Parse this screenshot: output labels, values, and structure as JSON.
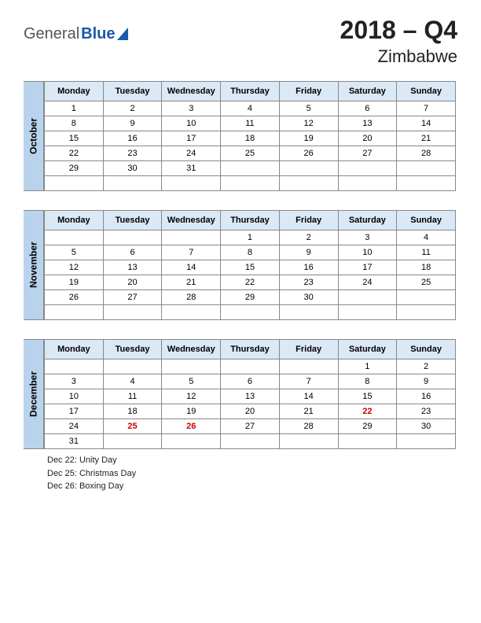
{
  "logo": {
    "part1": "General",
    "part2": "Blue"
  },
  "title": {
    "main": "2018 – Q4",
    "sub": "Zimbabwe"
  },
  "day_headers": [
    "Monday",
    "Tuesday",
    "Wednesday",
    "Thursday",
    "Friday",
    "Saturday",
    "Sunday"
  ],
  "colors": {
    "month_label_bg": "#b9d3ec",
    "header_bg": "#dbe8f5",
    "border": "#888888",
    "holiday_text": "#cc0000",
    "logo_blue": "#1a5aa8"
  },
  "months": [
    {
      "name": "October",
      "weeks": [
        [
          "1",
          "2",
          "3",
          "4",
          "5",
          "6",
          "7"
        ],
        [
          "8",
          "9",
          "10",
          "11",
          "12",
          "13",
          "14"
        ],
        [
          "15",
          "16",
          "17",
          "18",
          "19",
          "20",
          "21"
        ],
        [
          "22",
          "23",
          "24",
          "25",
          "26",
          "27",
          "28"
        ],
        [
          "29",
          "30",
          "31",
          "",
          "",
          "",
          ""
        ],
        [
          "",
          "",
          "",
          "",
          "",
          "",
          ""
        ]
      ],
      "holiday_cells": [],
      "holidays_list": []
    },
    {
      "name": "November",
      "weeks": [
        [
          "",
          "",
          "",
          "1",
          "2",
          "3",
          "4"
        ],
        [
          "5",
          "6",
          "7",
          "8",
          "9",
          "10",
          "11"
        ],
        [
          "12",
          "13",
          "14",
          "15",
          "16",
          "17",
          "18"
        ],
        [
          "19",
          "20",
          "21",
          "22",
          "23",
          "24",
          "25"
        ],
        [
          "26",
          "27",
          "28",
          "29",
          "30",
          "",
          ""
        ],
        [
          "",
          "",
          "",
          "",
          "",
          "",
          ""
        ]
      ],
      "holiday_cells": [],
      "holidays_list": []
    },
    {
      "name": "December",
      "weeks": [
        [
          "",
          "",
          "",
          "",
          "",
          "1",
          "2"
        ],
        [
          "3",
          "4",
          "5",
          "6",
          "7",
          "8",
          "9"
        ],
        [
          "10",
          "11",
          "12",
          "13",
          "14",
          "15",
          "16"
        ],
        [
          "17",
          "18",
          "19",
          "20",
          "21",
          "22",
          "23"
        ],
        [
          "24",
          "25",
          "26",
          "27",
          "28",
          "29",
          "30"
        ],
        [
          "31",
          "",
          "",
          "",
          "",
          "",
          ""
        ]
      ],
      "holiday_cells": [
        "22",
        "25",
        "26"
      ],
      "holidays_list": [
        "Dec 22: Unity Day",
        "Dec 25: Christmas Day",
        "Dec 26: Boxing Day"
      ]
    }
  ]
}
